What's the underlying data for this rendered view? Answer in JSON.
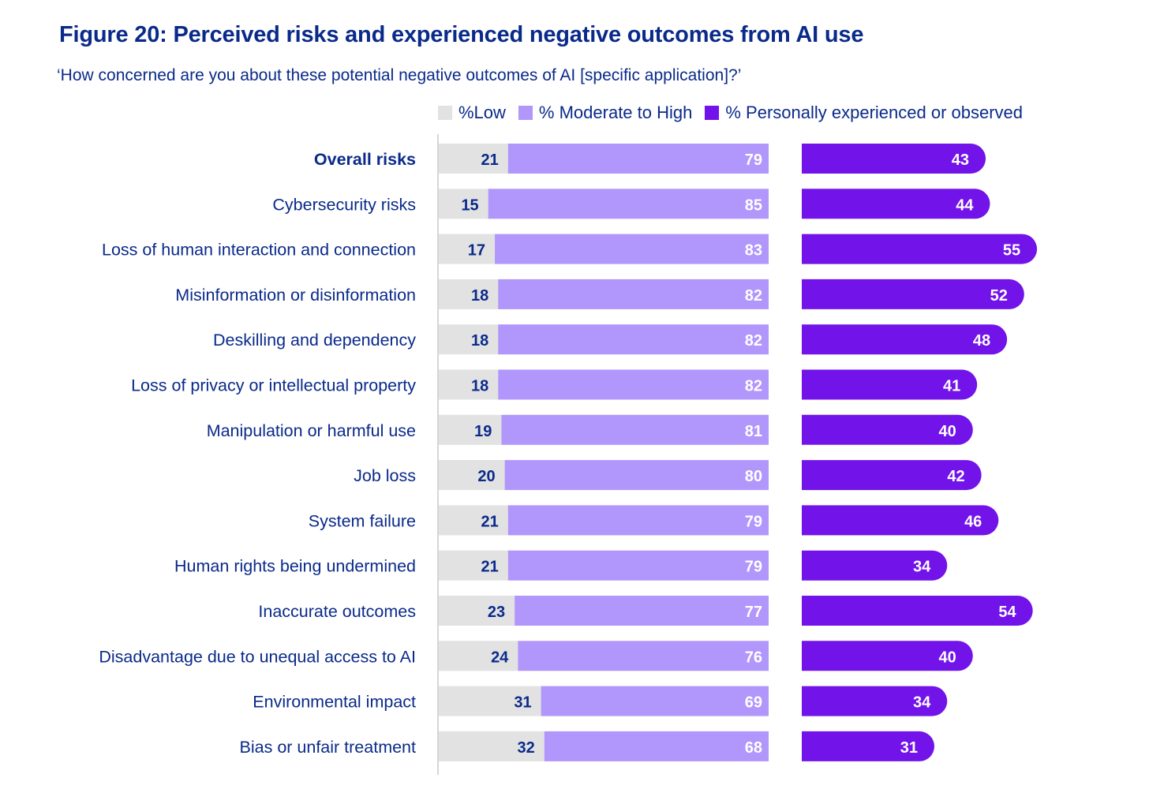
{
  "title": "Figure 20: Perceived risks and experienced negative outcomes from AI use",
  "subtitle": "‘How concerned are you about these potential negative outcomes of AI [specific application]?’",
  "colors": {
    "low": "#e2e2e2",
    "moderate_high": "#b196fb",
    "experienced": "#7213ea",
    "text": "#0a2a8a"
  },
  "chart_data": {
    "type": "bar",
    "orientation": "horizontal",
    "stacked_group": [
      "%Low",
      "% Moderate to High"
    ],
    "legend": [
      {
        "label": "%Low",
        "color": "#e2e2e2"
      },
      {
        "label": "% Moderate to High",
        "color": "#b196fb"
      },
      {
        "label": "% Personally experienced or observed",
        "color": "#7213ea"
      }
    ],
    "legend_position": "top-right",
    "categories": [
      "Overall risks",
      "Cybersecurity risks",
      "Loss of human interaction and connection",
      "Misinformation or disinformation",
      "Deskilling and dependency",
      "Loss of privacy or intellectual property",
      "Manipulation or harmful use",
      "Job loss",
      "System failure",
      "Human rights being undermined",
      "Inaccurate outcomes",
      "Disadvantage due to unequal access to AI",
      "Environmental impact",
      "Bias or unfair treatment"
    ],
    "highlighted_category": "Overall risks",
    "series": [
      {
        "name": "%Low",
        "values": [
          21,
          15,
          17,
          18,
          18,
          18,
          19,
          20,
          21,
          21,
          23,
          24,
          31,
          32
        ]
      },
      {
        "name": "% Moderate to High",
        "values": [
          79,
          85,
          83,
          82,
          82,
          82,
          81,
          80,
          79,
          79,
          77,
          76,
          69,
          68
        ]
      },
      {
        "name": "% Personally experienced or observed",
        "values": [
          43,
          44,
          55,
          52,
          48,
          41,
          40,
          42,
          46,
          34,
          54,
          40,
          34,
          31
        ]
      }
    ],
    "xlim": [
      0,
      100
    ]
  }
}
